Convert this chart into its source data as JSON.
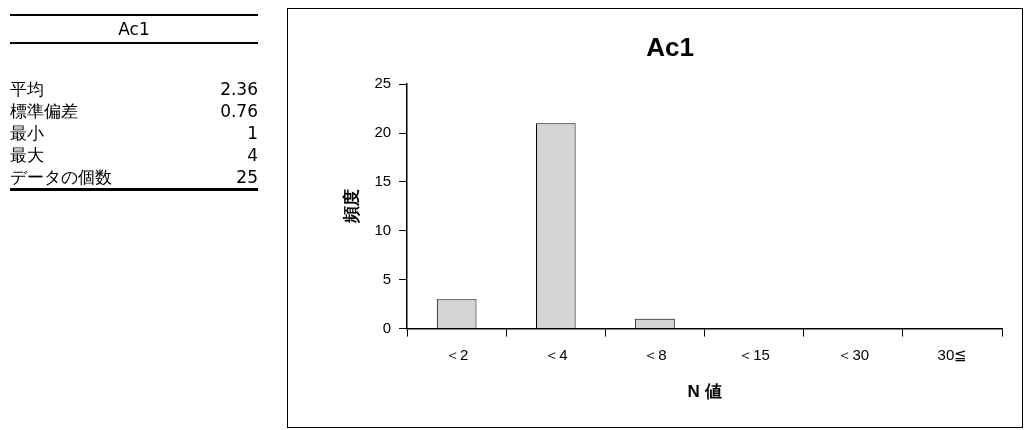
{
  "chart_data": [
    {
      "type": "other",
      "title": "Ac1",
      "categories": [
        "平均",
        "標準偏差",
        "最小",
        "最大",
        "データの個数"
      ],
      "values": [
        2.36,
        0.76,
        1,
        4,
        25
      ],
      "data_labels": true
    },
    {
      "type": "bar",
      "title": "Ac1",
      "xlabel": "N 値",
      "ylabel": "頻度",
      "categories": [
        "＜2",
        "＜4",
        "＜8",
        "＜15",
        "＜30",
        "30≦"
      ],
      "values": [
        3,
        21,
        1,
        0,
        0,
        0
      ],
      "color": "#d4d4d4",
      "ylim": [
        0,
        25
      ],
      "yticks": [
        0,
        5,
        10,
        15,
        20,
        25
      ],
      "grid": false,
      "legend": false
    }
  ]
}
